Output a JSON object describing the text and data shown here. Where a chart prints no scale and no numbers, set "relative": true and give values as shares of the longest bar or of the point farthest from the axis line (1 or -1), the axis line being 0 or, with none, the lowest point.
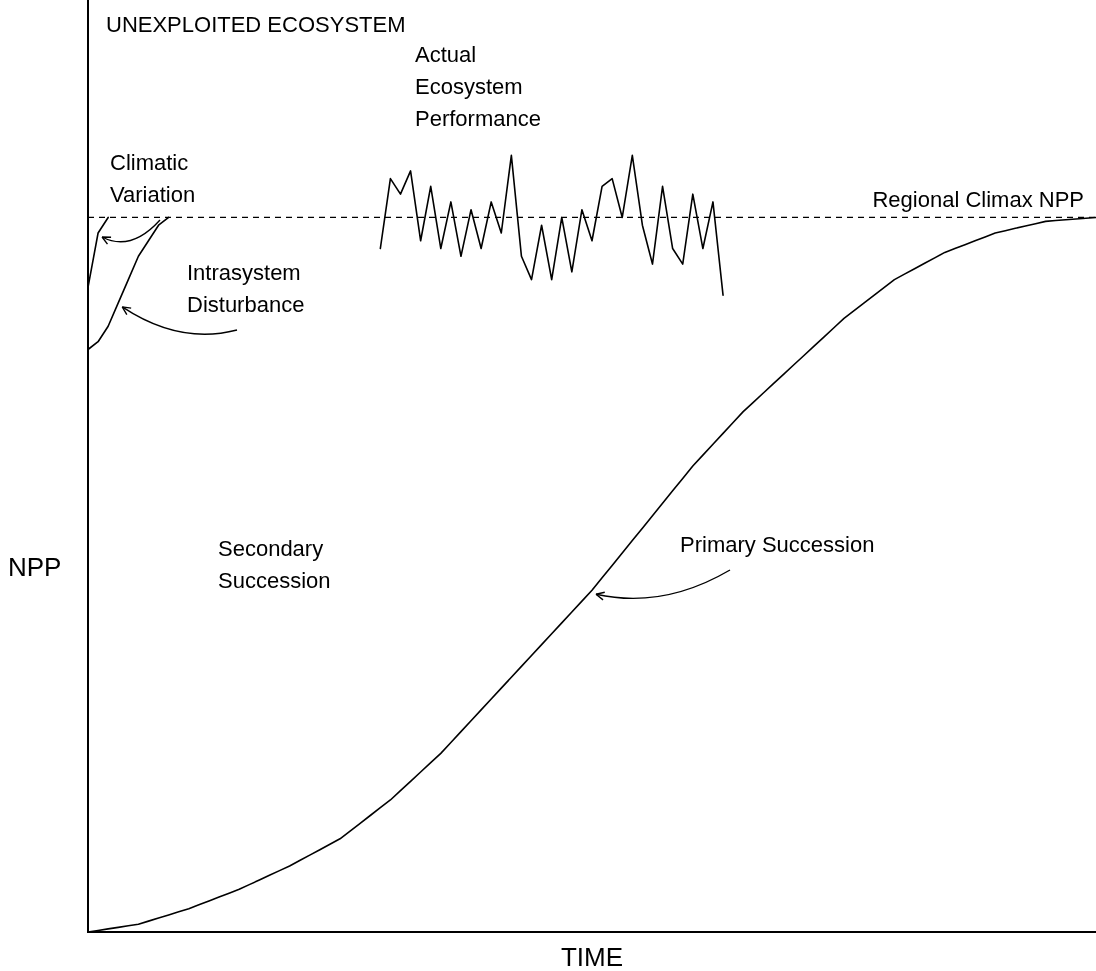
{
  "chart_data": {
    "type": "line",
    "relative": true,
    "title": "UNEXPLOITED ECOSYSTEM",
    "xlabel": "TIME",
    "ylabel": "NPP",
    "categories": [
      null,
      null,
      null,
      null,
      null,
      null,
      null,
      null,
      null,
      null,
      null,
      null,
      null,
      null,
      null,
      null,
      null,
      null,
      null,
      null,
      null,
      null,
      null,
      null,
      null,
      null,
      null,
      null,
      null,
      null,
      null,
      null,
      null,
      null,
      null,
      null,
      null,
      null,
      null,
      null,
      null,
      null,
      null,
      null,
      null,
      null,
      null,
      null,
      null,
      null,
      null,
      null,
      null,
      null,
      null,
      null,
      null,
      null,
      null,
      null,
      null,
      null,
      null,
      null,
      null,
      null,
      null,
      null,
      null,
      null,
      null,
      null,
      null,
      null,
      null,
      null,
      null,
      null,
      null,
      null,
      null,
      null,
      null,
      null,
      null,
      null,
      null,
      null,
      null,
      null,
      null,
      null,
      null,
      null,
      null,
      null,
      null,
      null,
      null,
      null,
      null
    ],
    "series": [
      {
        "name": "Primary Succession",
        "color": "#000000",
        "values": [
          0,
          0.002,
          0.004,
          0.006,
          0.008,
          0.01,
          0.014,
          0.018,
          0.022,
          0.026,
          0.03,
          0.035,
          0.04,
          0.045,
          0.05,
          0.055,
          0.061,
          0.067,
          0.073,
          0.079,
          0.085,
          0.092,
          0.099,
          0.106,
          0.113,
          0.12,
          0.13,
          0.14,
          0.15,
          0.16,
          0.17,
          0.182,
          0.194,
          0.206,
          0.218,
          0.23,
          0.244,
          0.258,
          0.272,
          0.286,
          0.3,
          0.314,
          0.328,
          0.342,
          0.356,
          0.37,
          0.384,
          0.398,
          0.412,
          0.426,
          0.44,
          0.456,
          0.472,
          0.488,
          0.504,
          0.52,
          0.536,
          0.552,
          0.568,
          0.584,
          0.6,
          0.614,
          0.628,
          0.642,
          0.656,
          0.67,
          0.682,
          0.694,
          0.706,
          0.718,
          0.73,
          0.742,
          0.754,
          0.766,
          0.778,
          0.79,
          0.8,
          0.81,
          0.82,
          0.83,
          0.84,
          0.847,
          0.854,
          0.861,
          0.868,
          0.875,
          0.88,
          0.885,
          0.89,
          0.895,
          0.9,
          0.903,
          0.906,
          0.909,
          0.912,
          0.915,
          0.916,
          0.917,
          0.918,
          0.919,
          0.92
        ]
      },
      {
        "name": "Actual Ecosystem Performance",
        "color": "#000000",
        "values": [
          null,
          null,
          null,
          null,
          null,
          null,
          null,
          null,
          null,
          null,
          null,
          null,
          null,
          null,
          null,
          null,
          null,
          null,
          null,
          null,
          null,
          null,
          null,
          null,
          null,
          null,
          null,
          null,
          null,
          0.88,
          0.97,
          0.95,
          0.98,
          0.89,
          0.96,
          0.88,
          0.94,
          0.87,
          0.93,
          0.88,
          0.94,
          0.9,
          1.0,
          0.87,
          0.84,
          0.91,
          0.84,
          0.92,
          0.85,
          0.93,
          0.89,
          0.96,
          0.97,
          0.92,
          1.0,
          0.91,
          0.86,
          0.96,
          0.88,
          0.86,
          0.95,
          0.88,
          0.94,
          0.82,
          null,
          null,
          null,
          null,
          null,
          null,
          null,
          null,
          null,
          null,
          null,
          null,
          null,
          null,
          null,
          null,
          null,
          null,
          null,
          null,
          null,
          null,
          null,
          null,
          null,
          null,
          null,
          null,
          null,
          null,
          null,
          null,
          null,
          null,
          null,
          null,
          null
        ]
      },
      {
        "name": "Climatic Variation",
        "color": "#000000",
        "values": [
          0.83,
          0.9,
          0.92,
          null,
          null,
          null,
          null,
          null,
          null,
          null,
          null,
          null,
          null,
          null,
          null,
          null,
          null,
          null,
          null,
          null,
          null,
          null,
          null,
          null,
          null,
          null,
          null,
          null,
          null,
          null,
          null,
          null,
          null,
          null,
          null,
          null,
          null,
          null,
          null,
          null,
          null,
          null,
          null,
          null,
          null,
          null,
          null,
          null,
          null,
          null,
          null,
          null,
          null,
          null,
          null,
          null,
          null,
          null,
          null,
          null,
          null,
          null,
          null,
          null,
          null,
          null,
          null,
          null,
          null,
          null,
          null,
          null,
          null,
          null,
          null,
          null,
          null,
          null,
          null,
          null,
          null,
          null,
          null,
          null,
          null,
          null,
          null,
          null,
          null,
          null,
          null,
          null,
          null,
          null,
          null,
          null,
          null,
          null,
          null,
          null,
          null
        ]
      },
      {
        "name": "Intrasystem Disturbance",
        "color": "#000000",
        "values": [
          0.75,
          0.76,
          0.78,
          0.81,
          0.84,
          0.87,
          0.89,
          0.91,
          0.92,
          null,
          null,
          null,
          null,
          null,
          null,
          null,
          null,
          null,
          null,
          null,
          null,
          null,
          null,
          null,
          null,
          null,
          null,
          null,
          null,
          null,
          null,
          null,
          null,
          null,
          null,
          null,
          null,
          null,
          null,
          null,
          null,
          null,
          null,
          null,
          null,
          null,
          null,
          null,
          null,
          null,
          null,
          null,
          null,
          null,
          null,
          null,
          null,
          null,
          null,
          null,
          null,
          null,
          null,
          null,
          null,
          null,
          null,
          null,
          null,
          null,
          null,
          null,
          null,
          null,
          null,
          null,
          null,
          null,
          null,
          null,
          null,
          null,
          null,
          null,
          null,
          null,
          null,
          null,
          null,
          null,
          null,
          null,
          null,
          null,
          null,
          null,
          null,
          null,
          null,
          null,
          null
        ]
      }
    ],
    "ref_lines": [
      {
        "axis": "y",
        "value": 0.92,
        "label": "Regional Climax NPP",
        "color": "#000000",
        "line_style": "dashed"
      }
    ],
    "annotations": [
      "Secondary Succession"
    ],
    "legend": false,
    "marker": "none"
  }
}
